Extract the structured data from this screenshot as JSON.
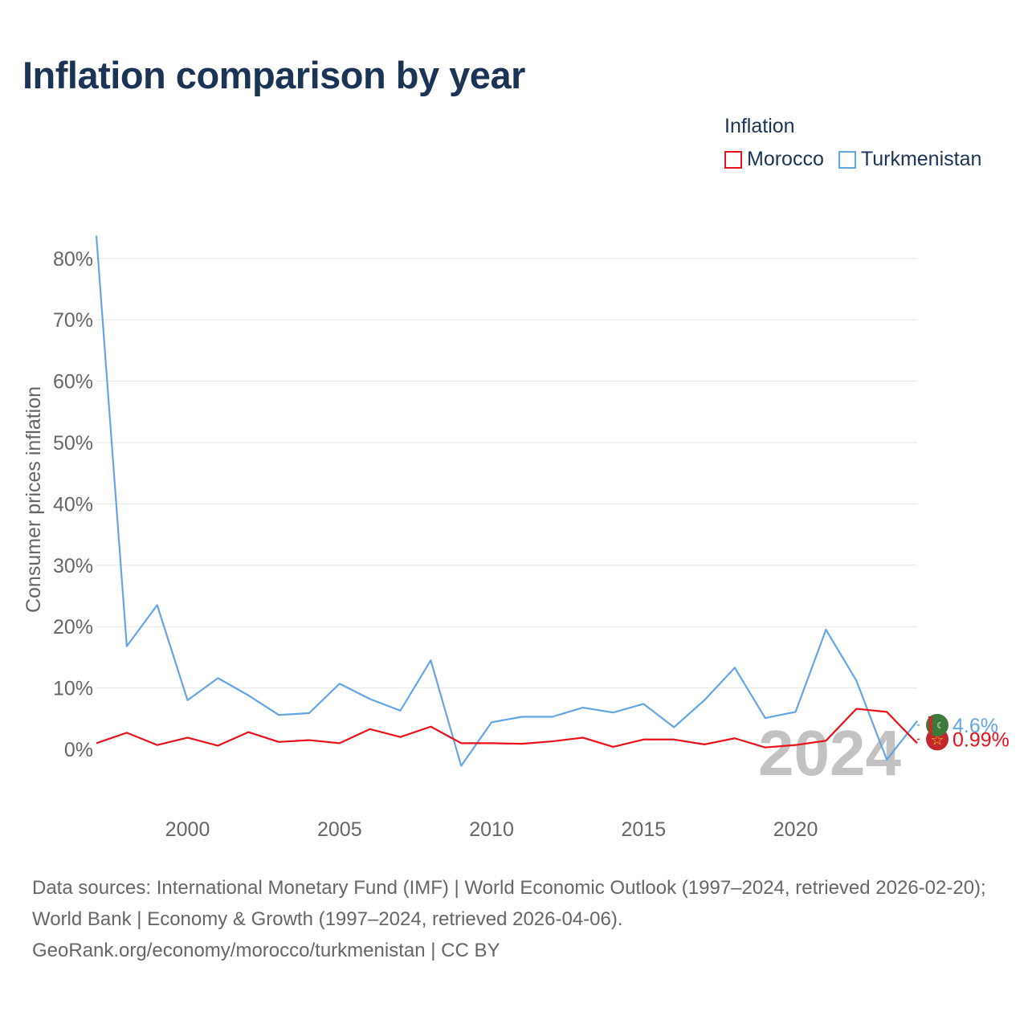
{
  "title": "Inflation comparison by year",
  "legend": {
    "title": "Inflation",
    "items": [
      {
        "label": "Morocco",
        "color": "#e8111a"
      },
      {
        "label": "Turkmenistan",
        "color": "#64a6e4"
      }
    ]
  },
  "watermark_year": "2024",
  "footer": {
    "sources": "Data sources: International Monetary Fund (IMF) | World Economic Outlook (1997–2024, retrieved 2026-02-20); World Bank | Economy & Growth (1997–2024, retrieved 2026-04-06).",
    "credit": "GeoRank.org/economy/morocco/turkmenistan | CC BY"
  },
  "chart_data": {
    "type": "line",
    "title": "Inflation comparison by year",
    "ylabel": "Consumer prices inflation",
    "xlabel": "",
    "x": [
      1997,
      1998,
      1999,
      2000,
      2001,
      2002,
      2003,
      2004,
      2005,
      2006,
      2007,
      2008,
      2009,
      2010,
      2011,
      2012,
      2013,
      2014,
      2015,
      2016,
      2017,
      2018,
      2019,
      2020,
      2021,
      2022,
      2023,
      2024
    ],
    "xlim": [
      1997,
      2024
    ],
    "ylim": [
      -10,
      84
    ],
    "xticks": [
      2000,
      2005,
      2010,
      2015,
      2020
    ],
    "yticks": [
      0,
      10,
      20,
      30,
      40,
      50,
      60,
      70,
      80
    ],
    "ytick_labels": [
      "0%",
      "10%",
      "20%",
      "30%",
      "40%",
      "50%",
      "60%",
      "70%",
      "80%"
    ],
    "series": [
      {
        "name": "Morocco",
        "color": "#e8111a",
        "values": [
          1.0,
          2.7,
          0.7,
          1.9,
          0.6,
          2.8,
          1.2,
          1.5,
          1.0,
          3.3,
          2.0,
          3.7,
          1.0,
          1.0,
          0.9,
          1.3,
          1.9,
          0.4,
          1.6,
          1.6,
          0.8,
          1.8,
          0.3,
          0.7,
          1.4,
          6.6,
          6.1,
          0.99
        ],
        "end_label": "0.99%"
      },
      {
        "name": "Turkmenistan",
        "color": "#64a6e4",
        "values": [
          83.7,
          16.8,
          23.5,
          8.0,
          11.6,
          8.8,
          5.6,
          5.9,
          10.7,
          8.2,
          6.3,
          14.5,
          -2.7,
          4.4,
          5.3,
          5.3,
          6.8,
          6.0,
          7.4,
          3.6,
          8.0,
          13.3,
          5.1,
          6.1,
          19.5,
          11.2,
          -1.7,
          4.6
        ],
        "end_label": "4.6%"
      }
    ]
  }
}
